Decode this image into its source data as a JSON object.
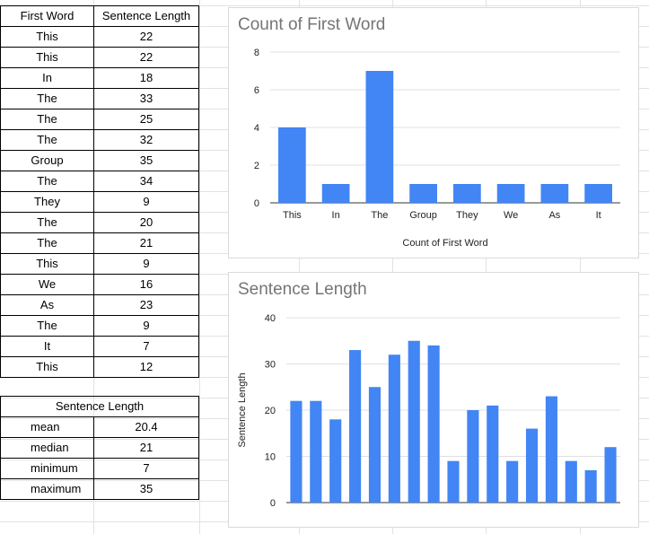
{
  "table": {
    "headers": [
      "First Word",
      "Sentence Length"
    ],
    "rows": [
      [
        "This",
        "22"
      ],
      [
        "This",
        "22"
      ],
      [
        "In",
        "18"
      ],
      [
        "The",
        "33"
      ],
      [
        "The",
        "25"
      ],
      [
        "The",
        "32"
      ],
      [
        "Group",
        "35"
      ],
      [
        "The",
        "34"
      ],
      [
        "They",
        "9"
      ],
      [
        "The",
        "20"
      ],
      [
        "The",
        "21"
      ],
      [
        "This",
        "9"
      ],
      [
        "We",
        "16"
      ],
      [
        "As",
        "23"
      ],
      [
        "The",
        "9"
      ],
      [
        "It",
        "7"
      ],
      [
        "This",
        "12"
      ]
    ]
  },
  "stats": {
    "title": "Sentence Length",
    "rows": [
      {
        "label": "mean",
        "value": "20.4"
      },
      {
        "label": "median",
        "value": "21"
      },
      {
        "label": "minimum",
        "value": "7"
      },
      {
        "label": "maximum",
        "value": "35"
      }
    ]
  },
  "chart_data": [
    {
      "type": "bar",
      "title": "Count of First Word",
      "xlabel": "Count of First Word",
      "ylabel": "",
      "categories": [
        "This",
        "In",
        "The",
        "Group",
        "They",
        "We",
        "As",
        "It"
      ],
      "values": [
        4,
        1,
        7,
        1,
        1,
        1,
        1,
        1
      ],
      "ylim": [
        0,
        8
      ],
      "yticks": [
        0,
        2,
        4,
        6,
        8
      ],
      "grid": true,
      "color": "#4285f4"
    },
    {
      "type": "bar",
      "title": "Sentence Length",
      "xlabel": "",
      "ylabel": "Sentence Length",
      "values": [
        22,
        22,
        18,
        33,
        25,
        32,
        35,
        34,
        9,
        20,
        21,
        9,
        16,
        23,
        9,
        7,
        12
      ],
      "ylim": [
        0,
        40
      ],
      "yticks": [
        0,
        10,
        20,
        30,
        40
      ],
      "grid": true,
      "color": "#4285f4"
    }
  ]
}
